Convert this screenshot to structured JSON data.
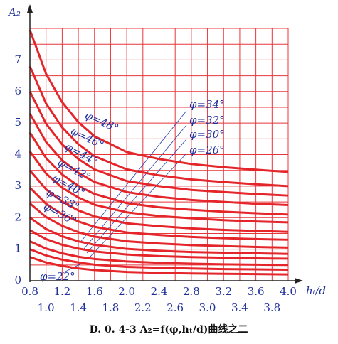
{
  "chart_data": {
    "type": "line",
    "title": "D. 0. 4-3   A₂=f(φ,hₜ/d)曲线之二",
    "x_label": "hₜ/d",
    "y_label": "A₂",
    "x": [
      0.8,
      1.0,
      1.2,
      1.4,
      1.6,
      2.0,
      2.4,
      2.8,
      3.2,
      3.6,
      4.0
    ],
    "xlim": [
      0.8,
      4.0
    ],
    "ylim": [
      0,
      8
    ],
    "xticks": [
      0.8,
      {
        "value": 1.0,
        "label": "1.0"
      },
      1.2,
      1.4,
      1.6,
      1.8,
      {
        "value": 2.0,
        "label": "2.0"
      },
      2.2,
      2.4,
      2.6,
      2.8,
      {
        "value": 3.0,
        "label": "3.0"
      },
      3.2,
      3.4,
      3.6,
      3.8,
      {
        "value": 4.0,
        "label": "4.0"
      }
    ],
    "yticks": [
      0,
      1,
      2,
      3,
      4,
      5,
      6,
      7
    ],
    "grid": true,
    "color": "#e4262b",
    "series": [
      {
        "name": "φ=48°",
        "values": [
          7.95,
          6.56,
          5.66,
          5.03,
          4.58,
          4.08,
          3.86,
          3.7,
          3.6,
          3.52,
          3.45
        ]
      },
      {
        "name": "φ=46°",
        "values": [
          6.8,
          5.62,
          4.86,
          4.33,
          3.95,
          3.53,
          3.34,
          3.21,
          3.13,
          3.06,
          3.0
        ]
      },
      {
        "name": "φ=44°",
        "values": [
          6.0,
          4.98,
          4.32,
          3.86,
          3.53,
          3.16,
          3.0,
          2.88,
          2.81,
          2.75,
          2.7
        ]
      },
      {
        "name": "φ=42°",
        "values": [
          5.3,
          4.4,
          3.82,
          3.42,
          3.13,
          2.81,
          2.66,
          2.56,
          2.5,
          2.44,
          2.4
        ]
      },
      {
        "name": "φ=40°",
        "values": [
          4.7,
          3.89,
          3.37,
          3.01,
          2.75,
          2.46,
          2.33,
          2.25,
          2.19,
          2.14,
          2.1
        ]
      },
      {
        "name": "φ=38°",
        "values": [
          4.1,
          3.4,
          2.95,
          2.64,
          2.41,
          2.17,
          2.05,
          1.98,
          1.92,
          1.88,
          1.85
        ]
      },
      {
        "name": "φ=36°",
        "values": [
          3.5,
          2.9,
          2.51,
          2.23,
          2.04,
          1.82,
          1.73,
          1.66,
          1.61,
          1.58,
          1.55
        ]
      },
      {
        "name": "φ=34°",
        "values": [
          2.95,
          2.44,
          2.11,
          1.88,
          1.71,
          1.53,
          1.45,
          1.39,
          1.35,
          1.32,
          1.3
        ]
      },
      {
        "name": "φ=32°",
        "values": [
          2.45,
          2.02,
          1.74,
          1.54,
          1.4,
          1.25,
          1.18,
          1.13,
          1.1,
          1.07,
          1.05
        ]
      },
      {
        "name": "φ=30°",
        "values": [
          2.0,
          1.64,
          1.41,
          1.25,
          1.14,
          1.01,
          0.95,
          0.91,
          0.89,
          0.87,
          0.85
        ]
      },
      {
        "values": [
          1.6,
          1.32,
          1.14,
          1.02,
          0.93,
          0.83,
          0.78,
          0.75,
          0.73,
          0.71,
          0.7
        ]
      },
      {
        "name": "φ=26°",
        "values": [
          1.25,
          1.02,
          0.87,
          0.76,
          0.69,
          0.61,
          0.57,
          0.54,
          0.52,
          0.51,
          0.5
        ]
      },
      {
        "values": [
          1.0,
          0.8,
          0.67,
          0.58,
          0.51,
          0.44,
          0.41,
          0.39,
          0.37,
          0.36,
          0.35
        ]
      },
      {
        "name": "φ=22°",
        "values": [
          0.75,
          0.58,
          0.47,
          0.39,
          0.34,
          0.28,
          0.25,
          0.23,
          0.22,
          0.21,
          0.2
        ]
      }
    ]
  }
}
